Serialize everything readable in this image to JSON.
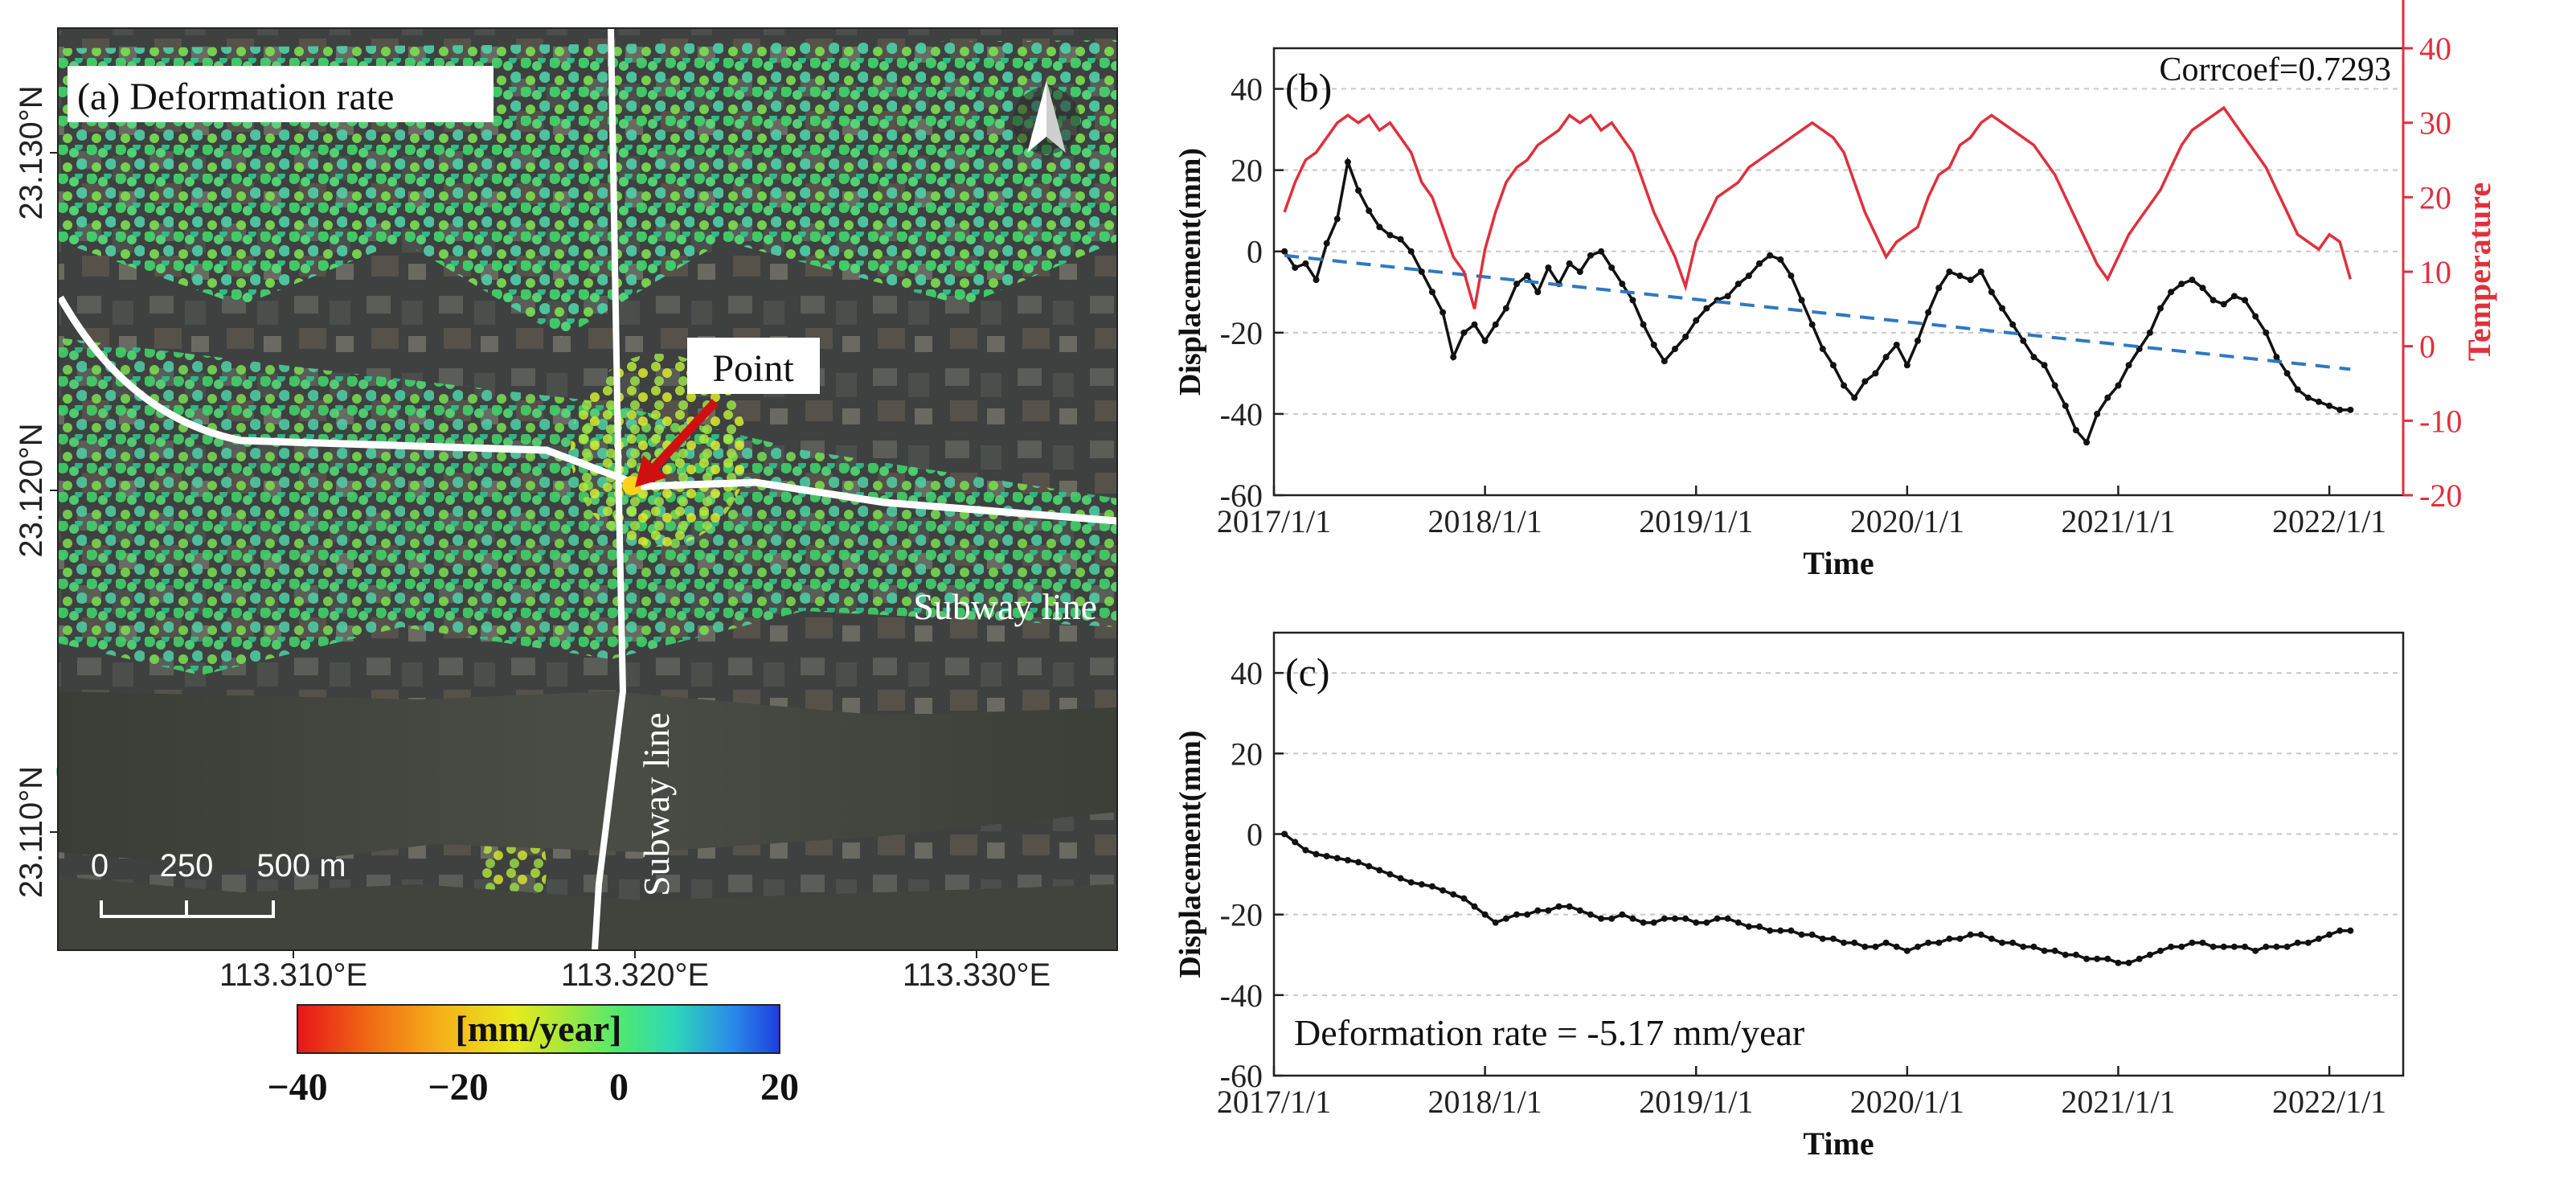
{
  "panel_a": {
    "label": "(a) Deformation rate",
    "lat_ticks": [
      "23.130°N",
      "23.120°N",
      "23.110°N"
    ],
    "lon_ticks": [
      "113.310°E",
      "113.320°E",
      "113.330°E"
    ],
    "point_label": "Point",
    "subway_label_1": "Subway line",
    "subway_label_2": "Subway line",
    "scale_labels": [
      "0",
      "250",
      "500 m"
    ],
    "colorbar": {
      "unit": "[mm/year]",
      "ticks": [
        "−40",
        "−20",
        "0",
        "20"
      ],
      "colors": [
        "#e8141b",
        "#f06a14",
        "#f5b21a",
        "#e8ea1e",
        "#a8e83a",
        "#4ee872",
        "#2ed8b8",
        "#2a8ce8",
        "#1e3ee0"
      ]
    }
  },
  "chart_data": [
    {
      "id": "b",
      "type": "line",
      "panel_label": "(b)",
      "annotation": "Corrcoef=0.7293",
      "xlabel": "Time",
      "ylabel": "Displacement(mm)",
      "y2label": "Temperature",
      "x_ticks": [
        "2017/1/1",
        "2018/1/1",
        "2019/1/1",
        "2020/1/1",
        "2021/1/1",
        "2022/1/1"
      ],
      "y_ticks": [
        "40",
        "20",
        "0",
        "-20",
        "-40",
        "-60"
      ],
      "y2_ticks": [
        "40",
        "30",
        "20",
        "10",
        "0",
        "-10",
        "-20"
      ],
      "xlim": [
        2017.0,
        2022.35
      ],
      "ylim": [
        -60,
        50
      ],
      "y2lim": [
        -20,
        40
      ],
      "series": [
        {
          "name": "Displacement",
          "axis": "left",
          "color": "#111111",
          "x": [
            2017.05,
            2017.1,
            2017.15,
            2017.2,
            2017.25,
            2017.3,
            2017.35,
            2017.4,
            2017.45,
            2017.5,
            2017.55,
            2017.6,
            2017.65,
            2017.7,
            2017.75,
            2017.8,
            2017.85,
            2017.9,
            2017.95,
            2018.0,
            2018.05,
            2018.1,
            2018.15,
            2018.2,
            2018.25,
            2018.3,
            2018.35,
            2018.4,
            2018.45,
            2018.5,
            2018.55,
            2018.6,
            2018.65,
            2018.7,
            2018.75,
            2018.8,
            2018.85,
            2018.9,
            2018.95,
            2019.0,
            2019.05,
            2019.1,
            2019.15,
            2019.2,
            2019.25,
            2019.3,
            2019.35,
            2019.4,
            2019.45,
            2019.5,
            2019.55,
            2019.6,
            2019.65,
            2019.7,
            2019.75,
            2019.8,
            2019.85,
            2019.9,
            2019.95,
            2020.0,
            2020.05,
            2020.1,
            2020.15,
            2020.2,
            2020.25,
            2020.3,
            2020.35,
            2020.4,
            2020.45,
            2020.5,
            2020.55,
            2020.6,
            2020.65,
            2020.7,
            2020.75,
            2020.8,
            2020.85,
            2020.9,
            2020.95,
            2021.0,
            2021.05,
            2021.1,
            2021.15,
            2021.2,
            2021.25,
            2021.3,
            2021.35,
            2021.4,
            2021.45,
            2021.5,
            2021.55,
            2021.6,
            2021.65,
            2021.7,
            2021.75,
            2021.8,
            2021.85,
            2021.9,
            2021.95,
            2022.0,
            2022.05,
            2022.1
          ],
          "values": [
            0,
            -4,
            -3,
            -7,
            2,
            8,
            22,
            15,
            10,
            6,
            4,
            3,
            0,
            -5,
            -10,
            -15,
            -26,
            -20,
            -18,
            -22,
            -18,
            -14,
            -8,
            -6,
            -10,
            -4,
            -8,
            -3,
            -5,
            -1,
            0,
            -4,
            -8,
            -12,
            -18,
            -23,
            -27,
            -24,
            -21,
            -17,
            -14,
            -12,
            -11,
            -8,
            -6,
            -3,
            -1,
            -2,
            -6,
            -12,
            -18,
            -24,
            -28,
            -33,
            -36,
            -32,
            -30,
            -26,
            -23,
            -28,
            -22,
            -15,
            -9,
            -5,
            -6,
            -7,
            -5,
            -10,
            -14,
            -18,
            -22,
            -26,
            -28,
            -33,
            -38,
            -44,
            -47,
            -40,
            -36,
            -33,
            -28,
            -24,
            -20,
            -14,
            -10,
            -8,
            -7,
            -9,
            -12,
            -13,
            -11,
            -12,
            -16,
            -20,
            -26,
            -30,
            -34,
            -36,
            -37,
            -38,
            -39,
            -39
          ]
        },
        {
          "name": "Trend",
          "axis": "left",
          "color": "#2f78c0",
          "style": "dashed",
          "x": [
            2017.05,
            2022.1
          ],
          "values": [
            -1,
            -29
          ]
        },
        {
          "name": "Temperature",
          "axis": "right",
          "color": "#e0303c",
          "x": [
            2017.05,
            2017.1,
            2017.15,
            2017.2,
            2017.25,
            2017.3,
            2017.35,
            2017.4,
            2017.45,
            2017.5,
            2017.55,
            2017.6,
            2017.65,
            2017.7,
            2017.75,
            2017.8,
            2017.85,
            2017.9,
            2017.95,
            2018.0,
            2018.05,
            2018.1,
            2018.15,
            2018.2,
            2018.25,
            2018.3,
            2018.35,
            2018.4,
            2018.45,
            2018.5,
            2018.55,
            2018.6,
            2018.65,
            2018.7,
            2018.75,
            2018.8,
            2018.85,
            2018.9,
            2018.95,
            2019.0,
            2019.05,
            2019.1,
            2019.15,
            2019.2,
            2019.25,
            2019.3,
            2019.35,
            2019.4,
            2019.45,
            2019.5,
            2019.55,
            2019.6,
            2019.65,
            2019.7,
            2019.75,
            2019.8,
            2019.85,
            2019.9,
            2019.95,
            2020.0,
            2020.05,
            2020.1,
            2020.15,
            2020.2,
            2020.25,
            2020.3,
            2020.35,
            2020.4,
            2020.45,
            2020.5,
            2020.55,
            2020.6,
            2020.65,
            2020.7,
            2020.75,
            2020.8,
            2020.85,
            2020.9,
            2020.95,
            2021.0,
            2021.05,
            2021.1,
            2021.15,
            2021.2,
            2021.25,
            2021.3,
            2021.35,
            2021.4,
            2021.45,
            2021.5,
            2021.55,
            2021.6,
            2021.65,
            2021.7,
            2021.75,
            2021.8,
            2021.85,
            2021.9,
            2021.95,
            2022.0,
            2022.05,
            2022.1
          ],
          "values": [
            18,
            22,
            25,
            26,
            28,
            30,
            31,
            30,
            31,
            29,
            30,
            28,
            26,
            22,
            20,
            16,
            12,
            10,
            5,
            13,
            18,
            22,
            24,
            25,
            27,
            28,
            29,
            31,
            30,
            31,
            29,
            30,
            28,
            26,
            22,
            18,
            15,
            12,
            8,
            14,
            17,
            20,
            21,
            22,
            24,
            25,
            26,
            27,
            28,
            29,
            30,
            29,
            28,
            26,
            22,
            18,
            15,
            12,
            14,
            15,
            16,
            20,
            23,
            24,
            27,
            28,
            30,
            31,
            30,
            29,
            28,
            27,
            25,
            23,
            20,
            17,
            14,
            11,
            9,
            12,
            15,
            17,
            19,
            21,
            24,
            27,
            29,
            30,
            31,
            32,
            30,
            28,
            26,
            24,
            21,
            18,
            15,
            14,
            13,
            15,
            14,
            9
          ]
        }
      ]
    },
    {
      "id": "c",
      "type": "line",
      "panel_label": "(c)",
      "annotation": "Deformation rate = -5.17 mm/year",
      "xlabel": "Time",
      "ylabel": "Displacement(mm)",
      "x_ticks": [
        "2017/1/1",
        "2018/1/1",
        "2019/1/1",
        "2020/1/1",
        "2021/1/1",
        "2022/1/1"
      ],
      "y_ticks": [
        "40",
        "20",
        "0",
        "-20",
        "-40",
        "-60"
      ],
      "xlim": [
        2017.0,
        2022.35
      ],
      "ylim": [
        -60,
        50
      ],
      "series": [
        {
          "name": "Displacement",
          "color": "#111111",
          "x": [
            2017.05,
            2017.1,
            2017.15,
            2017.2,
            2017.25,
            2017.3,
            2017.35,
            2017.4,
            2017.45,
            2017.5,
            2017.55,
            2017.6,
            2017.65,
            2017.7,
            2017.75,
            2017.8,
            2017.85,
            2017.9,
            2017.95,
            2018.0,
            2018.05,
            2018.1,
            2018.15,
            2018.2,
            2018.25,
            2018.3,
            2018.35,
            2018.4,
            2018.45,
            2018.5,
            2018.55,
            2018.6,
            2018.65,
            2018.7,
            2018.75,
            2018.8,
            2018.85,
            2018.9,
            2018.95,
            2019.0,
            2019.05,
            2019.1,
            2019.15,
            2019.2,
            2019.25,
            2019.3,
            2019.35,
            2019.4,
            2019.45,
            2019.5,
            2019.55,
            2019.6,
            2019.65,
            2019.7,
            2019.75,
            2019.8,
            2019.85,
            2019.9,
            2019.95,
            2020.0,
            2020.05,
            2020.1,
            2020.15,
            2020.2,
            2020.25,
            2020.3,
            2020.35,
            2020.4,
            2020.45,
            2020.5,
            2020.55,
            2020.6,
            2020.65,
            2020.7,
            2020.75,
            2020.8,
            2020.85,
            2020.9,
            2020.95,
            2021.0,
            2021.05,
            2021.1,
            2021.15,
            2021.2,
            2021.25,
            2021.3,
            2021.35,
            2021.4,
            2021.45,
            2021.5,
            2021.55,
            2021.6,
            2021.65,
            2021.7,
            2021.75,
            2021.8,
            2021.85,
            2021.9,
            2021.95,
            2022.0,
            2022.05,
            2022.1
          ],
          "values": [
            0,
            -2,
            -4,
            -5,
            -5.5,
            -6,
            -6.5,
            -7,
            -8,
            -9,
            -10,
            -11,
            -12,
            -12.5,
            -13,
            -14,
            -15,
            -16,
            -18,
            -20,
            -22,
            -21,
            -20,
            -20,
            -19,
            -19,
            -18,
            -18,
            -19,
            -20,
            -21,
            -21,
            -20,
            -21,
            -22,
            -22,
            -21,
            -21,
            -21,
            -22,
            -22,
            -21,
            -21,
            -22,
            -23,
            -23,
            -24,
            -24,
            -24,
            -25,
            -25,
            -26,
            -26,
            -27,
            -27,
            -28,
            -28,
            -27,
            -28,
            -29,
            -28,
            -27,
            -27,
            -26,
            -26,
            -25,
            -25,
            -26,
            -27,
            -27,
            -28,
            -28,
            -29,
            -29,
            -30,
            -30,
            -31,
            -31,
            -31,
            -32,
            -32,
            -31,
            -30,
            -29,
            -28,
            -28,
            -27,
            -27,
            -28,
            -28,
            -28,
            -28,
            -29,
            -28,
            -28,
            -28,
            -27,
            -27,
            -26,
            -25,
            -24,
            -24
          ]
        }
      ]
    }
  ]
}
